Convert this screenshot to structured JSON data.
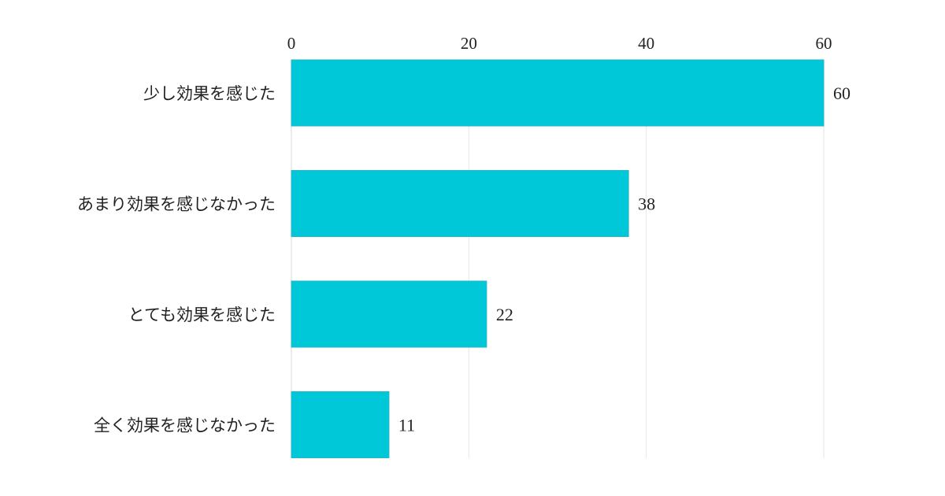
{
  "chart_data": {
    "type": "bar",
    "orientation": "horizontal",
    "categories": [
      "少し効果を感じた",
      "あまり効果を感じなかった",
      "とても効果を感じた",
      "全く効果を感じなかった"
    ],
    "values": [
      60,
      38,
      22,
      11
    ],
    "xlim": [
      0,
      60
    ],
    "ticks": [
      "0",
      "20",
      "40",
      "60"
    ],
    "tick_values": [
      0,
      20,
      40,
      60
    ],
    "title": "",
    "xlabel": "",
    "ylabel": "",
    "axis_position": "top",
    "grid": true,
    "legend": "none",
    "bar_color": "#00c8d9",
    "bar_edge_color": "#2ab5c7",
    "grid_color": "#e6e6e6"
  }
}
